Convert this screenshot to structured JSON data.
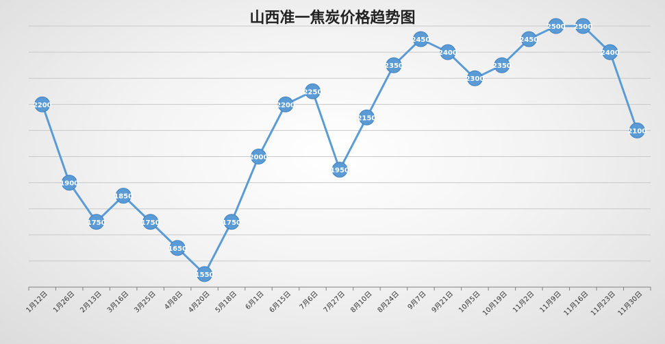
{
  "chart_data": {
    "type": "line",
    "title": "山西准一焦炭价格趋势图",
    "xlabel": "",
    "ylabel": "",
    "ylim": [
      1500,
      2550
    ],
    "grid": true,
    "legend": "none",
    "line_color": "#5b9bd5",
    "categories": [
      "1月12日",
      "1月26日",
      "2月13日",
      "3月16日",
      "3月25日",
      "4月8日",
      "4月20日",
      "5月18日",
      "6月1日",
      "6月15日",
      "7月6日",
      "7月27日",
      "8月10日",
      "8月24日",
      "9月7日",
      "9月21日",
      "10月5日",
      "10月19日",
      "11月2日",
      "11月9日",
      "11月16日",
      "11月23日",
      "11月30日"
    ],
    "series": [
      {
        "values": [
          2200,
          1900,
          1750,
          1850,
          1750,
          1650,
          1550,
          1750,
          2000,
          2200,
          2250,
          1950,
          2150,
          2350,
          2450,
          2400,
          2300,
          2350,
          2450,
          2500,
          2500,
          2400,
          2100
        ]
      }
    ]
  }
}
